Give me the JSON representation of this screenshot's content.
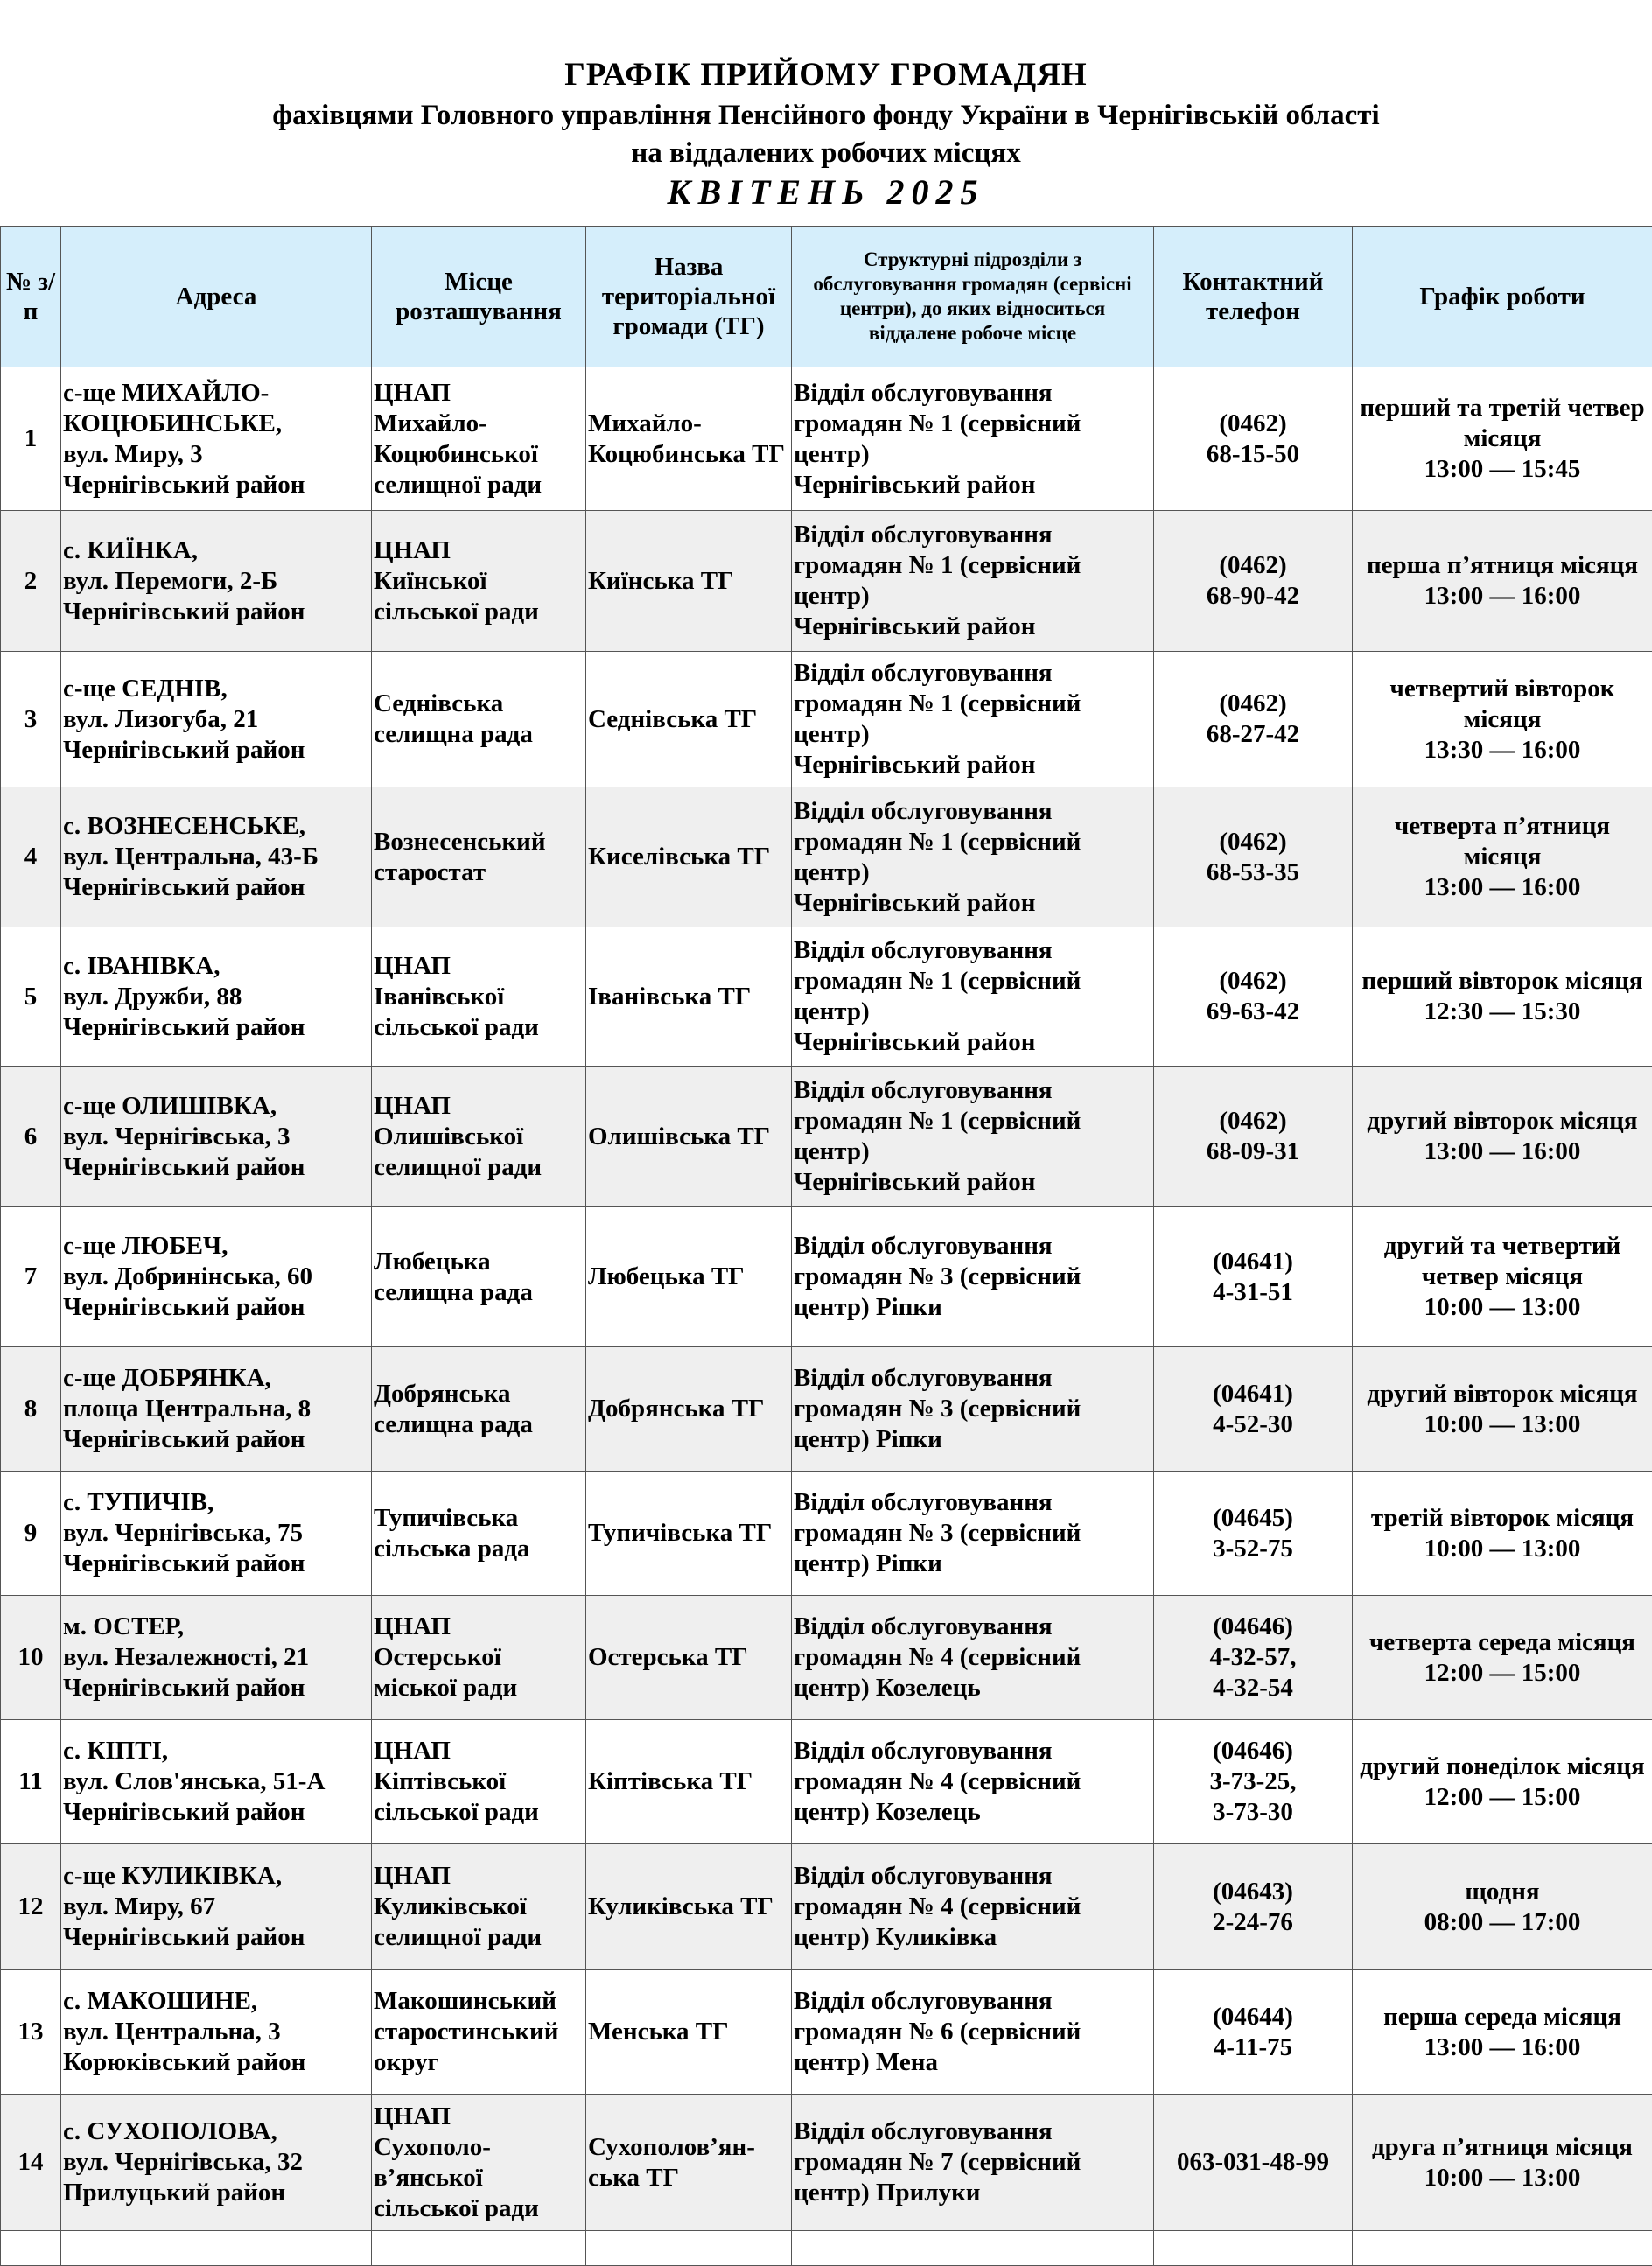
{
  "title": {
    "line1": "ГРАФІК  ПРИЙОМУ  ГРОМАДЯН",
    "line2": "фахівцями Головного управління Пенсійного фонду України в Чернігівській області",
    "line3": "на віддалених робочих місцях",
    "line4": "КВІТЕНЬ 2025"
  },
  "headers": {
    "num": "№ з/п",
    "address": "Адреса",
    "place": "Місце розташування",
    "tg": "Назва територіальної громади (ТГ)",
    "service": "Структурні підрозділи з обслуговування громадян (сервісні центри), до яких відноситься віддалене робоче місце",
    "phone": "Контактний телефон",
    "schedule": "Графік роботи"
  },
  "rows": [
    {
      "num": "1",
      "address": "с-ще МИХАЙЛО-КОЦЮБИНСЬКЕ,\nвул. Миру, 3\nЧернігівський район",
      "place": "ЦНАП\nМихайло-Коцюбинської селищної ради",
      "tg": "Михайло-Коцюбинська ТГ",
      "service": "Відділ обслуговування громадян  № 1 (сервісний центр)\nЧернігівський район",
      "phone": "(0462)\n68-15-50",
      "schedule": "перший та третій четвер місяця\n13:00 — 15:45"
    },
    {
      "num": "2",
      "address": "с. КИЇНКА,\nвул. Перемоги, 2-Б\nЧернігівський район",
      "place": "ЦНАП\nКиїнської сільської ради",
      "tg": "Киїнська  ТГ",
      "service": "Відділ обслуговування громадян  № 1 (сервісний центр)\nЧернігівський район",
      "phone": "(0462)\n68-90-42",
      "schedule": "перша п’ятниця місяця\n13:00 — 16:00"
    },
    {
      "num": "3",
      "address": "с-ще СЕДНІВ,\nвул. Лизогуба, 21\nЧернігівський район",
      "place": "Седнівська селищна рада",
      "tg": "Седнівська ТГ",
      "service": "Відділ обслуговування громадян  № 1 (сервісний центр)\nЧернігівський район",
      "phone": "(0462)\n68-27-42",
      "schedule": "четвертий вівторок місяця\n13:30 — 16:00"
    },
    {
      "num": "4",
      "address": "с. ВОЗНЕСЕНСЬКЕ,\nвул. Центральна, 43-Б\nЧернігівський район",
      "place": "Вознесенський старостат",
      "tg": "Киселівська ТГ",
      "service": "Відділ обслуговування громадян  № 1 (сервісний центр)\nЧернігівський район",
      "phone": "(0462)\n68-53-35",
      "schedule": "четверта п’ятниця місяця\n13:00 — 16:00"
    },
    {
      "num": "5",
      "address": "с. ІВАНІВКА,\nвул. Дружби, 88\nЧернігівський район",
      "place": "ЦНАП\nІванівської сільської ради",
      "tg": "Іванівська ТГ",
      "service": "Відділ обслуговування громадян  № 1 (сервісний центр)\nЧернігівський район",
      "phone": "(0462)\n69-63-42",
      "schedule": "перший вівторок місяця\n12:30 — 15:30"
    },
    {
      "num": "6",
      "address": "с-ще ОЛИШІВКА,\nвул. Чернігівська, 3\nЧернігівський район",
      "place": "ЦНАП\nОлишівської селищної ради",
      "tg": "Олишівська ТГ",
      "service": "Відділ обслуговування громадян  № 1 (сервісний центр)\nЧернігівський район",
      "phone": "(0462)\n68-09-31",
      "schedule": "другий вівторок місяця\n13:00 — 16:00"
    },
    {
      "num": "7",
      "address": "с-ще ЛЮБЕЧ,\nвул. Добринінська, 60\nЧернігівський район",
      "place": "Любецька селищна рада",
      "tg": "Любецька ТГ",
      "service": "Відділ обслуговування громадян  № 3 (сервісний центр)  Ріпки",
      "phone": "(04641)\n4-31-51",
      "schedule": "другий та четвертий четвер місяця\n10:00 — 13:00"
    },
    {
      "num": "8",
      "address": "с-ще ДОБРЯНКА,\nплоща Центральна, 8\nЧернігівський район",
      "place": "Добрянська селищна рада",
      "tg": "Добрянська ТГ",
      "service": "Відділ обслуговування громадян  № 3 (сервісний центр)   Ріпки",
      "phone": "(04641)\n4-52-30",
      "schedule": "другий вівторок місяця\n10:00 — 13:00"
    },
    {
      "num": "9",
      "address": "с. ТУПИЧІВ,\nвул. Чернігівська, 75\nЧернігівський район",
      "place": "Тупичівська сільська рада",
      "tg": "Тупичівська ТГ",
      "service": "Відділ обслуговування громадян  № 3 (сервісний центр)  Ріпки",
      "phone": "(04645)\n3-52-75",
      "schedule": "третій вівторок місяця\n10:00 — 13:00"
    },
    {
      "num": "10",
      "address": "м. ОСТЕР,\nвул. Незалежності, 21\nЧернігівський район",
      "place": "ЦНАП\nОстерської міської ради",
      "tg": "Остерська ТГ",
      "service": "Відділ обслуговування громадян  № 4 (сервісний центр)  Козелець",
      "phone": "(04646)\n4-32-57,\n4-32-54",
      "schedule": "четверта середа місяця\n12:00 — 15:00"
    },
    {
      "num": "11",
      "address": "с. КІПТІ,\nвул. Слов'янська, 51-А\nЧернігівський район",
      "place": "ЦНАП\nКіптівської сільської ради",
      "tg": "Кіптівська ТГ",
      "service": "Відділ обслуговування громадян  № 4 (сервісний центр)  Козелець",
      "phone": "(04646)\n3-73-25,\n3-73-30",
      "schedule": "другий понеділок місяця\n12:00 — 15:00"
    },
    {
      "num": "12",
      "address": "с-ще КУЛИКІВКА,\nвул. Миру, 67\nЧернігівський район",
      "place": "ЦНАП\nКуликівської селищної ради",
      "tg": "Куликівська ТГ",
      "service": "Відділ обслуговування громадян  № 4 (сервісний центр)  Куликівка",
      "phone": "(04643)\n2-24-76",
      "schedule": "щодня\n08:00 — 17:00"
    },
    {
      "num": "13",
      "address": "с. МАКОШИНЕ,\nвул. Центральна, 3\nКорюківський район",
      "place": "Макошинський старостинський округ",
      "tg": "Менська ТГ",
      "service": "Відділ обслуговування громадян  № 6 (сервісний центр)  Мена",
      "phone": "(04644)\n4-11-75",
      "schedule": "перша середа місяця\n13:00 — 16:00"
    },
    {
      "num": "14",
      "address": "с. СУХОПОЛОВА,\nвул. Чернігівська, 32\nПрилуцький район",
      "place": "ЦНАП\nСухополо-в’янської сільської ради",
      "tg": "Сухополов’ян-ська ТГ",
      "service": "Відділ обслуговування громадян  № 7 (сервісний центр)  Прилуки",
      "phone": "063-031-48-99",
      "schedule": "друга п’ятниця місяця\n10:00 — 13:00"
    }
  ]
}
